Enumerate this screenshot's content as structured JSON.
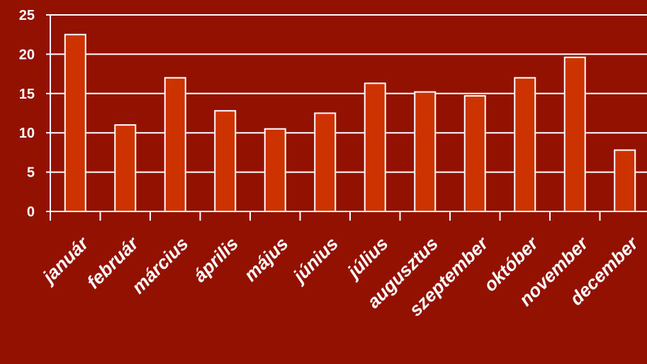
{
  "chart_data": {
    "type": "bar",
    "title": "",
    "xlabel": "",
    "ylabel": "",
    "categories": [
      "január",
      "február",
      "március",
      "április",
      "május",
      "június",
      "július",
      "augusztus",
      "szeptember",
      "október",
      "november",
      "december"
    ],
    "values": [
      22.5,
      11,
      17,
      12.8,
      10.5,
      12.5,
      16.3,
      15.2,
      14.7,
      17,
      19.6,
      7.8
    ],
    "ylim": [
      0,
      25
    ],
    "yticks": [
      0,
      5,
      10,
      15,
      20,
      25
    ],
    "grid": true,
    "legend": "none",
    "colors": {
      "background": "#931100",
      "bar_fill": "#cc3300",
      "bar_stroke": "#ffffff",
      "grid": "#ffffff",
      "text": "#ffffff"
    }
  }
}
